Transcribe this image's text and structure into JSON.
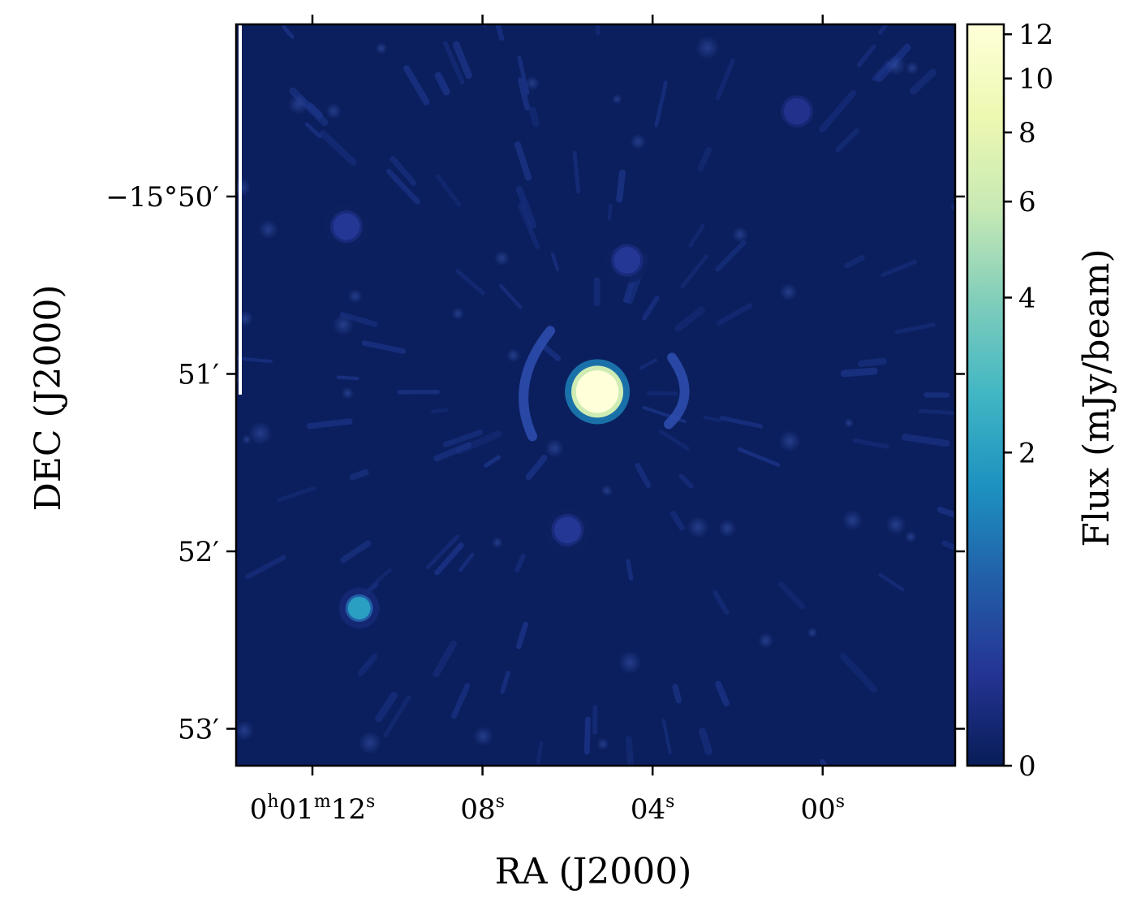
{
  "chart_data": {
    "type": "heatmap",
    "title": "",
    "xlabel": "RA (J2000)",
    "ylabel": "DEC (J2000)",
    "x_ticks": [
      {
        "h": "0",
        "m": "01",
        "s": "12"
      },
      {
        "h": "",
        "m": "",
        "s": "08"
      },
      {
        "h": "",
        "m": "",
        "s": "04"
      },
      {
        "h": "",
        "m": "",
        "s": "00"
      }
    ],
    "y_ticks": [
      "−15°50′",
      "51′",
      "52′",
      "53′"
    ],
    "colorbar": {
      "label": "Flux (mJy/beam)",
      "ticks": [
        0,
        2,
        4,
        6,
        8,
        10,
        12
      ],
      "range": [
        0,
        12.5
      ],
      "scale": "asinh",
      "colormap": "YlGnBu_r",
      "colors": [
        "#081d58",
        "#253494",
        "#225ea8",
        "#1d91c0",
        "#41b6c4",
        "#7fcdbb",
        "#c7e9b4",
        "#edf8b1",
        "#ffffd9"
      ]
    },
    "background_color": "#0b1f5e",
    "sources": [
      {
        "name": "central",
        "ra_s": 5.3,
        "dec_arcmin": 51.1,
        "peak_mjy": 12.5
      },
      {
        "name": "lower-left",
        "ra_s": 10.9,
        "dec_arcmin": 52.32,
        "peak_mjy": 2.0
      },
      {
        "name": "upper-left",
        "ra_s": 11.2,
        "dec_arcmin": 50.17,
        "peak_mjy": 0.5
      },
      {
        "name": "upper-right",
        "ra_s": 0.6,
        "dec_arcmin": 49.52,
        "peak_mjy": 0.4
      },
      {
        "name": "upper-center",
        "ra_s": 4.6,
        "dec_arcmin": 50.36,
        "peak_mjy": 0.5
      },
      {
        "name": "lower-center",
        "ra_s": 6.0,
        "dec_arcmin": 51.88,
        "peak_mjy": 0.5
      }
    ]
  }
}
